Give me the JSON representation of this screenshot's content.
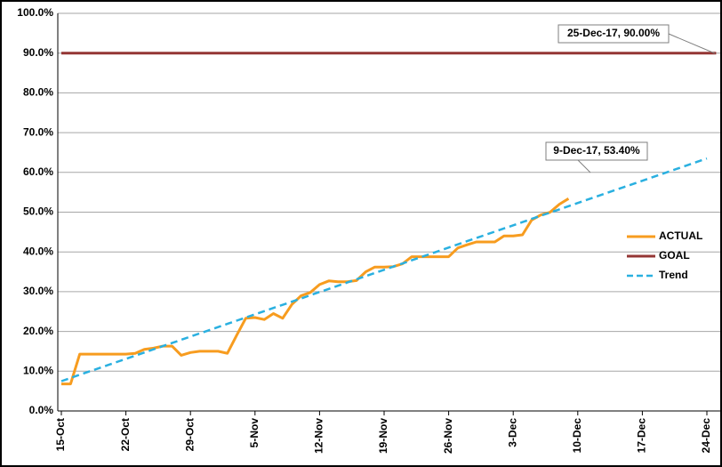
{
  "chart_data": {
    "type": "line",
    "categories": [
      "15-Oct",
      null,
      null,
      null,
      null,
      null,
      null,
      "22-Oct",
      null,
      null,
      null,
      null,
      null,
      null,
      "29-Oct",
      null,
      null,
      null,
      null,
      null,
      null,
      "5-Nov",
      null,
      null,
      null,
      null,
      null,
      null,
      "12-Nov",
      null,
      null,
      null,
      null,
      null,
      null,
      "19-Nov",
      null,
      null,
      null,
      null,
      null,
      null,
      "26-Nov",
      null,
      null,
      null,
      null,
      null,
      null,
      "3-Dec",
      null,
      null,
      null,
      null,
      null,
      null,
      "10-Dec",
      null,
      null,
      null,
      null,
      null,
      null,
      "17-Dec",
      null,
      null,
      null,
      null,
      null,
      null,
      "24-Dec",
      null
    ],
    "series": [
      {
        "name": "ACTUAL",
        "color": "#f79c1f",
        "values": [
          6.8,
          6.8,
          14.3,
          14.3,
          14.3,
          14.3,
          14.3,
          14.3,
          14.5,
          15.5,
          15.8,
          16.3,
          16.3,
          14.0,
          14.7,
          15.0,
          15.0,
          15.0,
          14.5,
          19.0,
          23.3,
          23.5,
          23.0,
          24.5,
          23.3,
          26.8,
          29.0,
          29.8,
          31.8,
          32.7,
          32.5,
          32.5,
          32.8,
          35.0,
          36.2,
          36.2,
          36.3,
          37.0,
          38.8,
          38.8,
          38.8,
          38.8,
          38.8,
          41.0,
          41.8,
          42.5,
          42.5,
          42.5,
          44.0,
          44.0,
          44.3,
          48.0,
          49.3,
          50.0,
          52.0,
          53.4,
          null,
          null,
          null,
          null,
          null,
          null,
          null,
          null,
          null,
          null,
          null,
          null,
          null,
          null,
          null,
          null
        ]
      },
      {
        "name": "GOAL",
        "color": "#943634",
        "values": [
          90,
          90,
          90,
          90,
          90,
          90,
          90,
          90,
          90,
          90,
          90,
          90,
          90,
          90,
          90,
          90,
          90,
          90,
          90,
          90,
          90,
          90,
          90,
          90,
          90,
          90,
          90,
          90,
          90,
          90,
          90,
          90,
          90,
          90,
          90,
          90,
          90,
          90,
          90,
          90,
          90,
          90,
          90,
          90,
          90,
          90,
          90,
          90,
          90,
          90,
          90,
          90,
          90,
          90,
          90,
          90,
          90,
          90,
          90,
          90,
          90,
          90,
          90,
          90,
          90,
          90,
          90,
          90,
          90,
          90,
          90,
          90
        ]
      },
      {
        "name": "Trend",
        "color": "#2ab0e0",
        "dashed": true,
        "values": [
          7.5,
          8.3,
          9.1,
          9.9,
          10.7,
          11.5,
          12.3,
          13.1,
          13.9,
          14.7,
          15.5,
          16.3,
          17.1,
          17.9,
          18.7,
          19.5,
          20.3,
          21.1,
          21.9,
          22.7,
          23.5,
          24.3,
          25.1,
          25.9,
          26.7,
          27.5,
          28.3,
          29.1,
          29.9,
          30.7,
          31.5,
          32.3,
          33.1,
          33.9,
          34.7,
          35.5,
          36.3,
          37.1,
          37.9,
          38.7,
          39.5,
          40.3,
          41.1,
          41.9,
          42.7,
          43.5,
          44.3,
          45.1,
          45.9,
          46.7,
          47.5,
          48.3,
          49.1,
          49.9,
          50.7,
          51.5,
          52.3,
          53.1,
          53.9,
          54.7,
          55.5,
          56.3,
          57.1,
          57.9,
          58.7,
          59.5,
          60.3,
          61.1,
          61.9,
          62.7,
          63.5,
          null
        ]
      }
    ],
    "ylim": [
      0,
      100
    ],
    "yticks": [
      {
        "value": 0,
        "label": "0.0%"
      },
      {
        "value": 10,
        "label": "10.0%"
      },
      {
        "value": 20,
        "label": "20.0%"
      },
      {
        "value": 30,
        "label": "30.0%"
      },
      {
        "value": 40,
        "label": "40.0%"
      },
      {
        "value": 50,
        "label": "50.0%"
      },
      {
        "value": 60,
        "label": "60.0%"
      },
      {
        "value": 70,
        "label": "70.0%"
      },
      {
        "value": 80,
        "label": "80.0%"
      },
      {
        "value": 90,
        "label": "90.0%"
      },
      {
        "value": 100,
        "label": "100.0%"
      }
    ],
    "grid": true,
    "legend": "right",
    "annotations": [
      "25-Dec-17, 90.00%",
      "9-Dec-17, 53.40%"
    ]
  }
}
